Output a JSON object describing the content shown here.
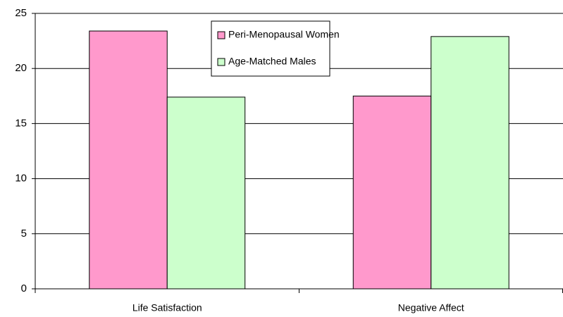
{
  "chart_data": {
    "type": "bar",
    "categories": [
      "Life Satisfaction",
      "Negative Affect"
    ],
    "series": [
      {
        "name": "Peri-Menopausal Women",
        "color": "#ff99cc",
        "values": [
          23.4,
          17.5
        ]
      },
      {
        "name": "Age-Matched Males",
        "color": "#ccffcc",
        "values": [
          17.4,
          22.9
        ]
      }
    ],
    "ylim": [
      0,
      25
    ],
    "yticks": [
      0,
      5,
      10,
      15,
      20,
      25
    ],
    "grid": true,
    "legend": "top"
  }
}
